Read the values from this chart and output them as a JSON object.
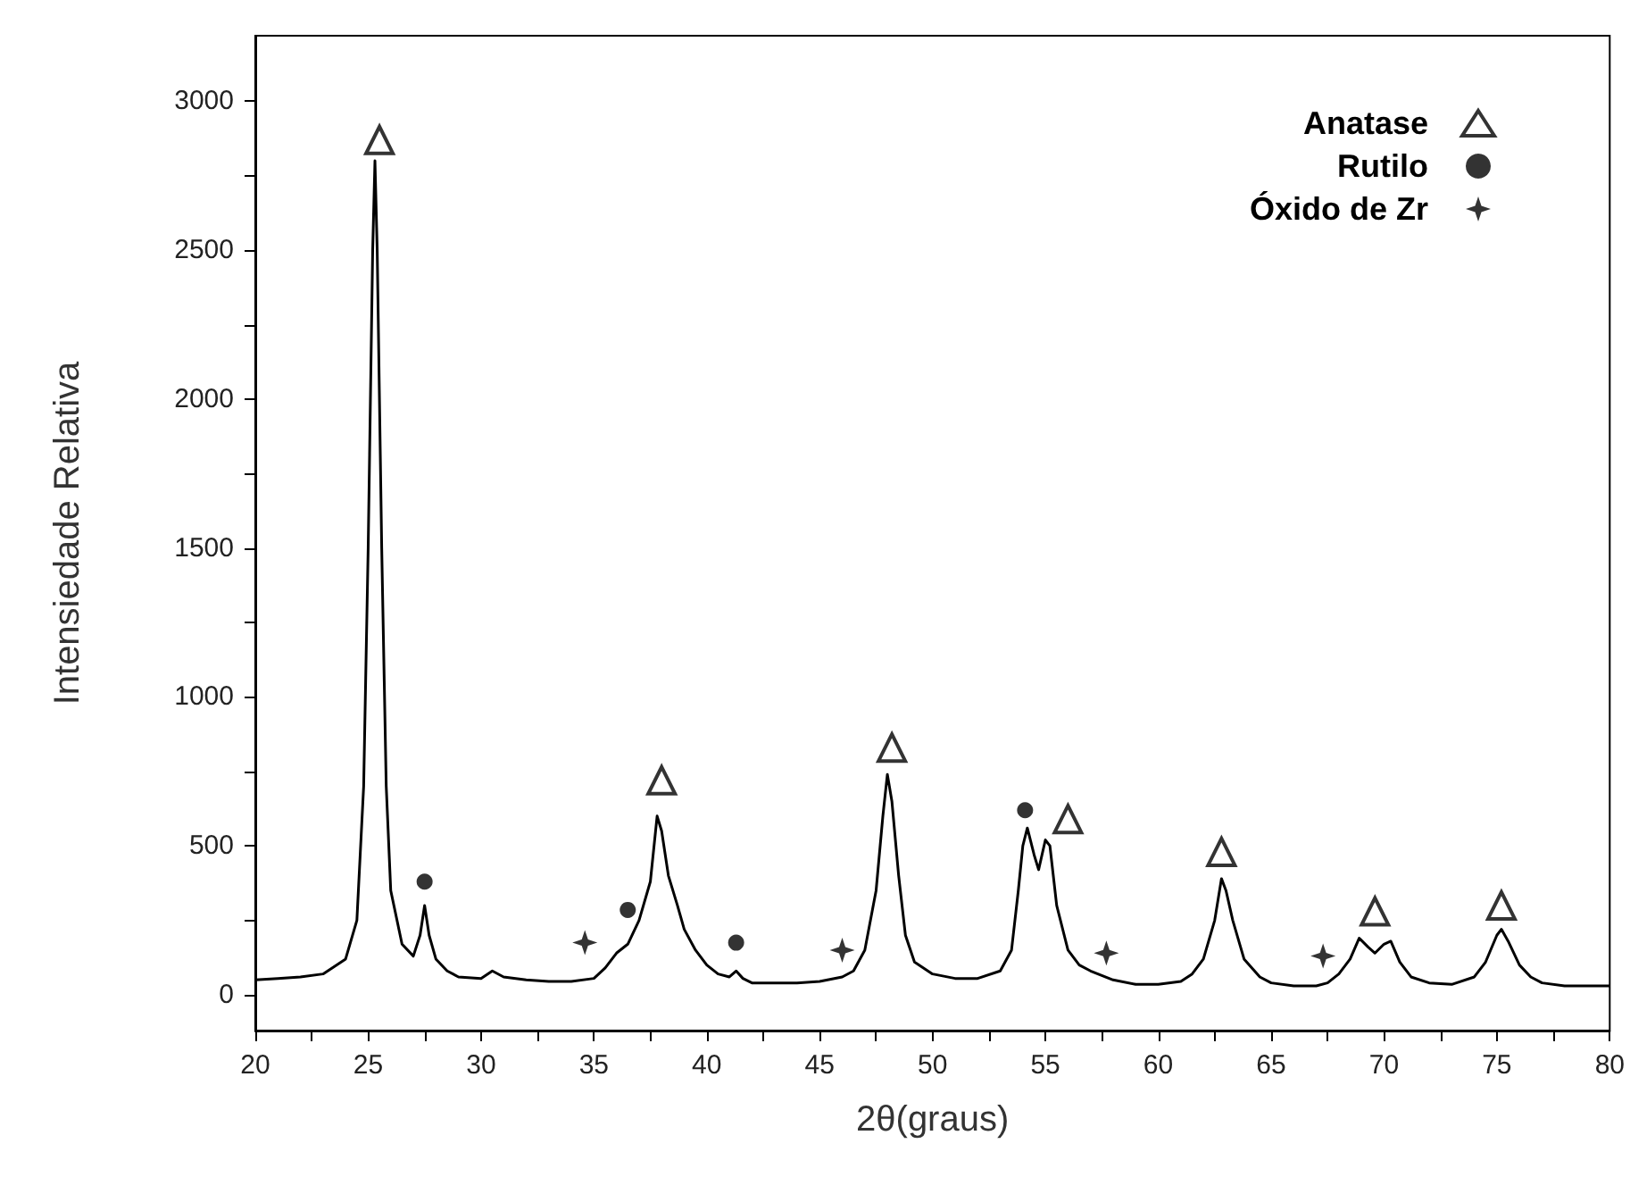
{
  "chart_data": {
    "type": "line",
    "xlabel": "2θ(graus)",
    "ylabel": "Intensiedade Relativa",
    "legend": "top right",
    "grid": false,
    "xlim": [
      20,
      80
    ],
    "xticks": [
      20,
      {
        "value": 22.5,
        "label": null
      },
      25,
      {
        "value": 27.5,
        "label": null
      },
      30,
      {
        "value": 32.5,
        "label": null
      },
      35,
      {
        "value": 37.5,
        "label": null
      },
      40,
      {
        "value": 42.5,
        "label": null
      },
      45,
      {
        "value": 47.5,
        "label": null
      },
      50,
      {
        "value": 52.5,
        "label": null
      },
      55,
      {
        "value": 57.5,
        "label": null
      },
      60,
      {
        "value": 62.5,
        "label": null
      },
      65,
      {
        "value": 67.5,
        "label": null
      },
      70,
      {
        "value": 72.5,
        "label": null
      },
      75,
      {
        "value": 77.5,
        "label": null
      },
      80
    ],
    "ylim": [
      -120,
      3220
    ],
    "yticks": [
      0,
      {
        "value": 250,
        "label": null
      },
      500,
      {
        "value": 750,
        "label": null
      },
      1000,
      {
        "value": 1250,
        "label": null
      },
      1500,
      {
        "value": 1750,
        "label": null
      },
      2000,
      {
        "value": 2250,
        "label": null
      },
      2500,
      {
        "value": 2750,
        "label": null
      },
      3000
    ],
    "series": [
      {
        "color": "#000000",
        "marker": "none",
        "line_style": "solid",
        "x": [
          20,
          21,
          22,
          23,
          24,
          24.5,
          24.8,
          25.0,
          25.2,
          25.3,
          25.4,
          25.6,
          25.8,
          26.0,
          26.5,
          27.0,
          27.3,
          27.5,
          27.7,
          28.0,
          28.5,
          29,
          30,
          30.5,
          31,
          32,
          33,
          34,
          35,
          35.5,
          36,
          36.5,
          37,
          37.5,
          37.8,
          38,
          38.3,
          38.7,
          39,
          39.5,
          40,
          40.5,
          41,
          41.3,
          41.6,
          42,
          43,
          44,
          45,
          46,
          46.5,
          47,
          47.5,
          47.8,
          48.0,
          48.2,
          48.5,
          48.8,
          49.2,
          50,
          51,
          52,
          53,
          53.5,
          53.8,
          54.0,
          54.2,
          54.5,
          54.7,
          55.0,
          55.2,
          55.5,
          56,
          56.5,
          57,
          58,
          59,
          60,
          61,
          61.5,
          62,
          62.5,
          62.8,
          63,
          63.3,
          63.8,
          64.5,
          65,
          66,
          67,
          67.5,
          68,
          68.5,
          68.9,
          69.3,
          69.6,
          70,
          70.3,
          70.7,
          71.2,
          72,
          73,
          74,
          74.5,
          75,
          75.2,
          75.5,
          76,
          76.5,
          77,
          78,
          79,
          80
        ],
        "values": [
          50,
          55,
          60,
          70,
          120,
          250,
          700,
          1500,
          2500,
          2800,
          2500,
          1500,
          700,
          350,
          170,
          130,
          200,
          300,
          200,
          120,
          80,
          60,
          55,
          80,
          60,
          50,
          45,
          45,
          55,
          90,
          140,
          170,
          250,
          380,
          600,
          550,
          400,
          300,
          220,
          150,
          100,
          70,
          60,
          80,
          55,
          40,
          40,
          40,
          45,
          60,
          80,
          150,
          350,
          600,
          740,
          650,
          400,
          200,
          110,
          70,
          55,
          55,
          80,
          150,
          350,
          500,
          560,
          470,
          420,
          520,
          500,
          300,
          150,
          100,
          80,
          50,
          35,
          35,
          45,
          70,
          120,
          250,
          390,
          350,
          250,
          120,
          60,
          40,
          30,
          30,
          40,
          70,
          120,
          190,
          160,
          140,
          170,
          180,
          110,
          60,
          40,
          35,
          60,
          110,
          200,
          220,
          180,
          100,
          60,
          40,
          30,
          30,
          30
        ]
      },
      {
        "type": "scatter",
        "name": "Anatase",
        "color": "#000000",
        "marker": "triangle",
        "x": [
          25.5,
          38.0,
          48.2,
          56.0,
          62.8,
          69.6,
          75.2
        ],
        "values": [
          2870,
          720,
          830,
          590,
          480,
          280,
          300
        ]
      },
      {
        "type": "scatter",
        "name": "Rutilo",
        "color": "#000000",
        "marker": "circle",
        "x": [
          27.5,
          36.5,
          41.3,
          54.1
        ],
        "values": [
          380,
          285,
          175,
          620
        ]
      },
      {
        "type": "scatter",
        "name": "Óxido de Zr",
        "color": "#000000",
        "marker": "star",
        "x": [
          34.6,
          46.0,
          57.7,
          67.3
        ],
        "values": [
          175,
          150,
          140,
          130
        ]
      }
    ]
  }
}
